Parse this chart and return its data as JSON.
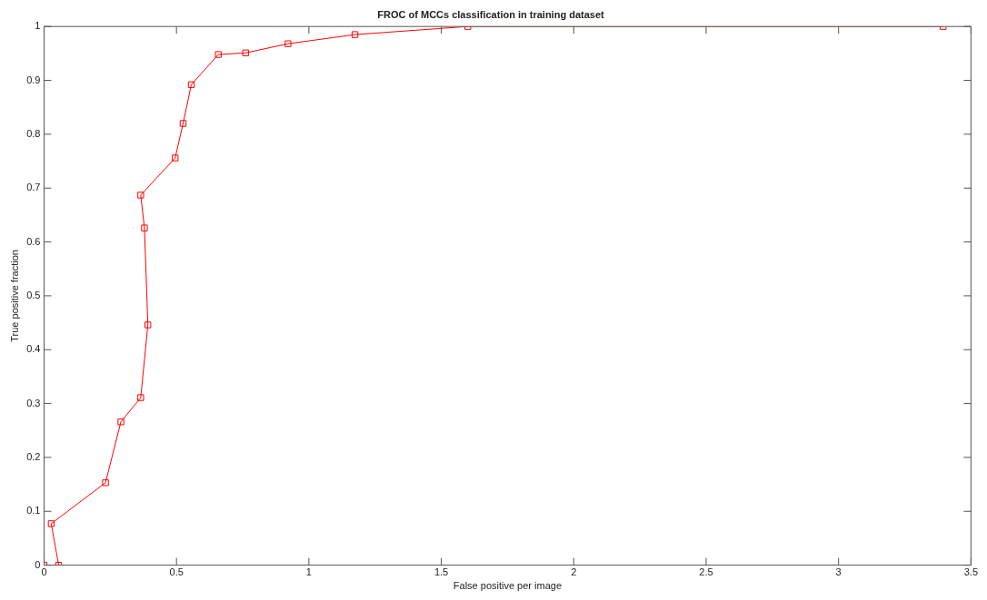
{
  "chart_data": {
    "type": "line",
    "title": "FROC of MCCs classification in training dataset",
    "xlabel": "False positive per image",
    "ylabel": "True positive fraction",
    "x": [
      0,
      0.055,
      0.027,
      0.232,
      0.29,
      0.365,
      0.392,
      0.379,
      0.365,
      0.495,
      0.525,
      0.556,
      0.658,
      0.761,
      0.921,
      1.174,
      1.6,
      3.395
    ],
    "values": [
      0,
      0,
      0.077,
      0.153,
      0.266,
      0.311,
      0.446,
      0.626,
      0.687,
      0.756,
      0.82,
      0.892,
      0.948,
      0.951,
      0.968,
      0.985,
      1,
      1
    ],
    "color": "#ff0000",
    "marker": "square",
    "line_style": "solid",
    "grid": false,
    "legend": false,
    "xlim": [
      0,
      3.5
    ],
    "xticks": [
      0,
      0.5,
      1,
      1.5,
      2,
      2.5,
      3,
      3.5
    ],
    "ylim": [
      0,
      1
    ],
    "yticks": [
      0,
      0.1,
      0.2,
      0.3,
      0.4,
      0.5,
      0.6,
      0.7,
      0.8,
      0.9,
      1
    ]
  }
}
